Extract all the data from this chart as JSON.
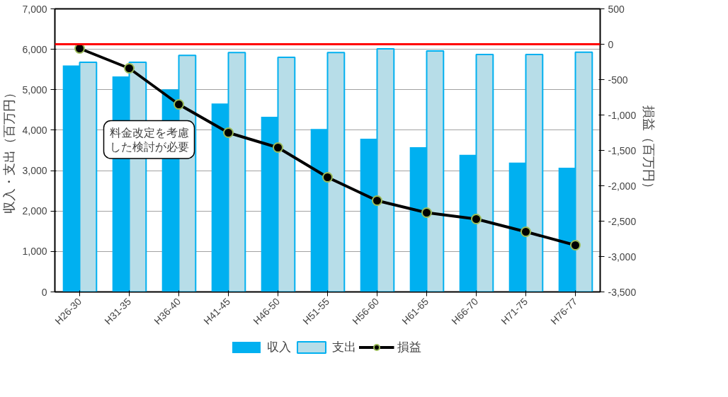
{
  "chart_data": {
    "type": "bar",
    "categories": [
      "H26-30",
      "H31-35",
      "H36-40",
      "H41-45",
      "H46-50",
      "H51-55",
      "H56-60",
      "H61-65",
      "H66-70",
      "H71-75",
      "H76-77"
    ],
    "series": [
      {
        "name": "収入",
        "color": "#00b0f0",
        "values": [
          5600,
          5330,
          5010,
          4660,
          4330,
          4030,
          3790,
          3580,
          3390,
          3200,
          3070
        ]
      },
      {
        "name": "支出",
        "color": "#b7dde8",
        "values": [
          5680,
          5680,
          5850,
          5920,
          5800,
          5920,
          6010,
          5960,
          5870,
          5870,
          5930
        ]
      },
      {
        "name": "損益",
        "type": "line",
        "axis": "y2",
        "color": "#000000",
        "marker": "circle",
        "values": [
          -60,
          -340,
          -850,
          -1250,
          -1460,
          -1880,
          -2210,
          -2380,
          -2470,
          -2650,
          -2840
        ]
      }
    ],
    "ylabel": "収入・支出（百万円）",
    "y2label": "損益（百万円）",
    "ylim": [
      0,
      7000
    ],
    "yticks": [
      0,
      {
        "value": 1000,
        "label": "1,000"
      },
      {
        "value": 2000,
        "label": "2,000"
      },
      {
        "value": 3000,
        "label": "3,000"
      },
      {
        "value": 4000,
        "label": "4,000"
      },
      {
        "value": 5000,
        "label": "5,000"
      },
      {
        "value": 6000,
        "label": "6,000"
      },
      {
        "value": 7000,
        "label": "7,000"
      }
    ],
    "y2lim": [
      -3500,
      500
    ],
    "y2ticks": [
      {
        "value": -3500,
        "label": "-3,500"
      },
      {
        "value": -3000,
        "label": "-3,000"
      },
      {
        "value": -2500,
        "label": "-2,500"
      },
      {
        "value": -2000,
        "label": "-2,000"
      },
      {
        "value": -1500,
        "label": "-1,500"
      },
      {
        "value": -1000,
        "label": "-1,000"
      },
      -500,
      0,
      500
    ],
    "ref_lines": [
      {
        "axis": "y2",
        "value": 0,
        "color": "#ff0000"
      }
    ],
    "annotations": [
      "料金改定を考慮した検討が必要"
    ],
    "grid": "y",
    "legend": "bottom"
  }
}
